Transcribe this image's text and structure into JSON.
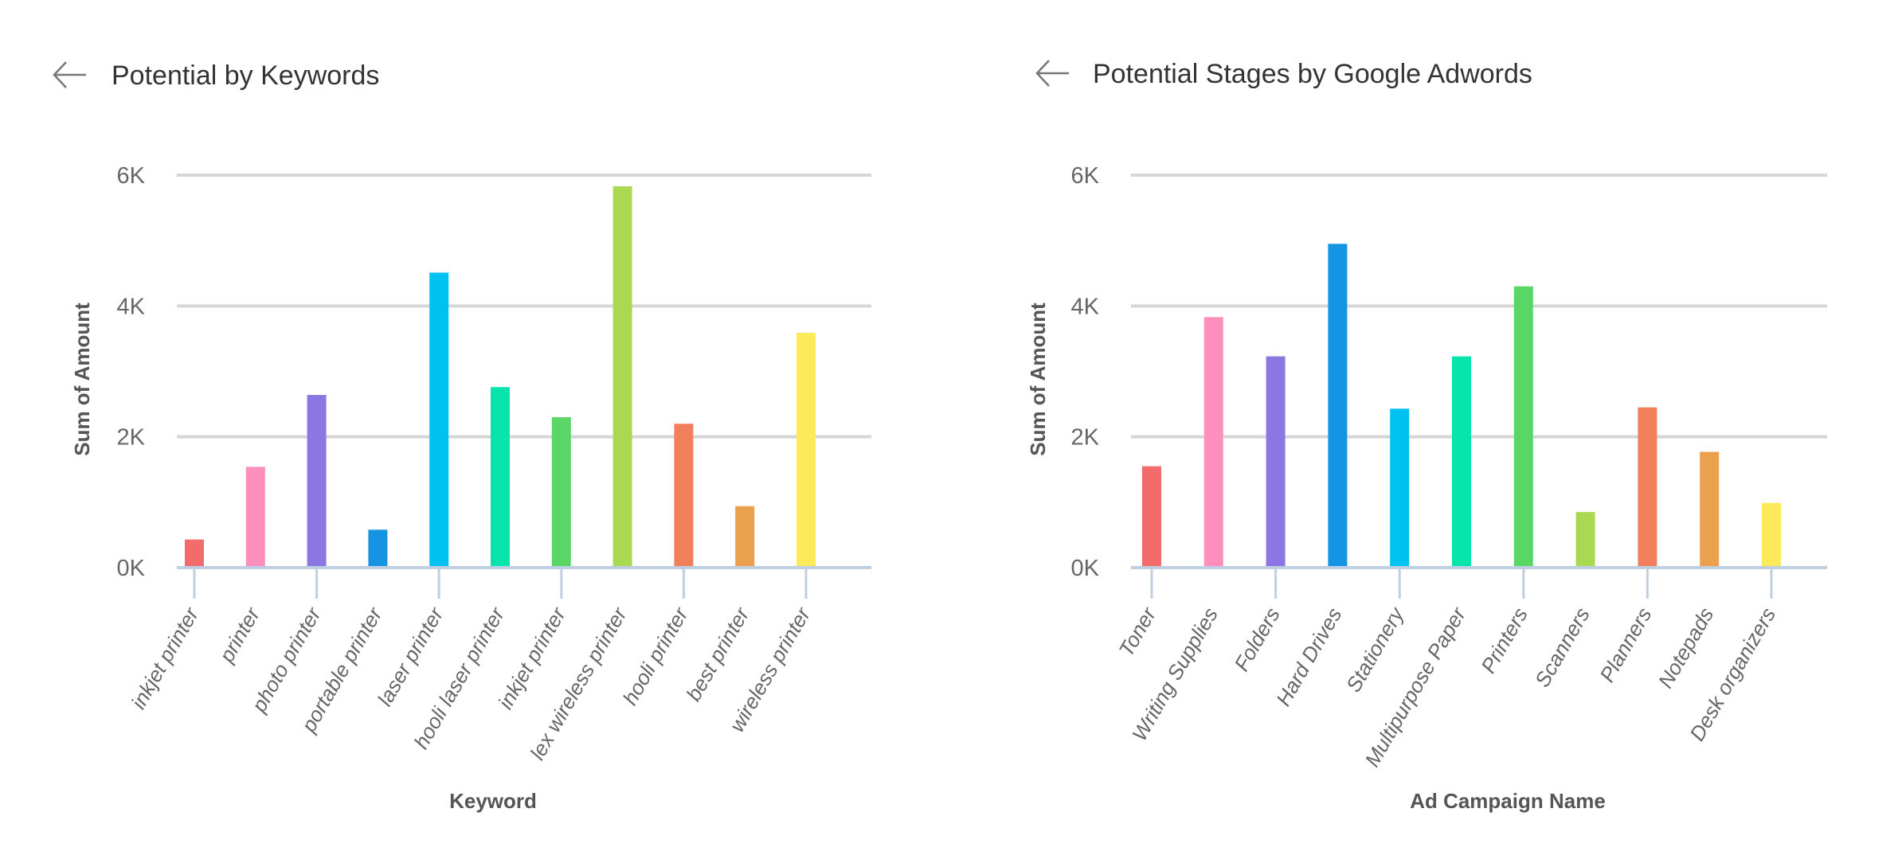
{
  "chart_data": [
    {
      "type": "bar",
      "title": "Potential by Keywords",
      "xlabel": "Keyword",
      "ylabel": "Sum of Amount",
      "ylim": [
        0,
        6000
      ],
      "yticks": [
        "0K",
        "2K",
        "4K",
        "6K"
      ],
      "ytick_values": [
        0,
        2000,
        4000,
        6000
      ],
      "grid": true,
      "categories": [
        "inkjet printer",
        "printer",
        "photo printer",
        "portable printer",
        "laser printer",
        "hooli laser printer",
        "inkjet printer",
        "lex wireless printer",
        "hooli printer",
        "best printer",
        "wireless printer"
      ],
      "values": [
        430,
        1540,
        2640,
        580,
        4510,
        2760,
        2300,
        5830,
        2200,
        940,
        3590
      ],
      "colors": [
        "#f46b6b",
        "#fd8fbd",
        "#8c77e2",
        "#1594e3",
        "#00c2f2",
        "#07e5ac",
        "#5ad667",
        "#abd853",
        "#f27f5c",
        "#eba04d",
        "#fdea5a"
      ]
    },
    {
      "type": "bar",
      "title": "Potential Stages by Google Adwords",
      "xlabel": "Ad Campaign Name",
      "ylabel": "Sum of Amount",
      "ylim": [
        0,
        6000
      ],
      "yticks": [
        "0K",
        "2K",
        "4K",
        "6K"
      ],
      "ytick_values": [
        0,
        2000,
        4000,
        6000
      ],
      "grid": true,
      "categories": [
        "Toner",
        "Writing Supplies",
        "Folders",
        "Hard Drives",
        "Stationery",
        "Multipurpose Paper",
        "Printers",
        "Scanners",
        "Planners",
        "Notepads",
        "Desk organizers"
      ],
      "values": [
        1550,
        3830,
        3230,
        4950,
        2430,
        3230,
        4300,
        850,
        2450,
        1770,
        990
      ],
      "colors": [
        "#f46b6b",
        "#fd8fbd",
        "#8c77e2",
        "#1594e3",
        "#00c2f2",
        "#07e5ac",
        "#5ad667",
        "#abd853",
        "#f27f5c",
        "#eba04d",
        "#fdea5a"
      ]
    }
  ],
  "icons": {
    "back": "arrow-left-icon"
  }
}
